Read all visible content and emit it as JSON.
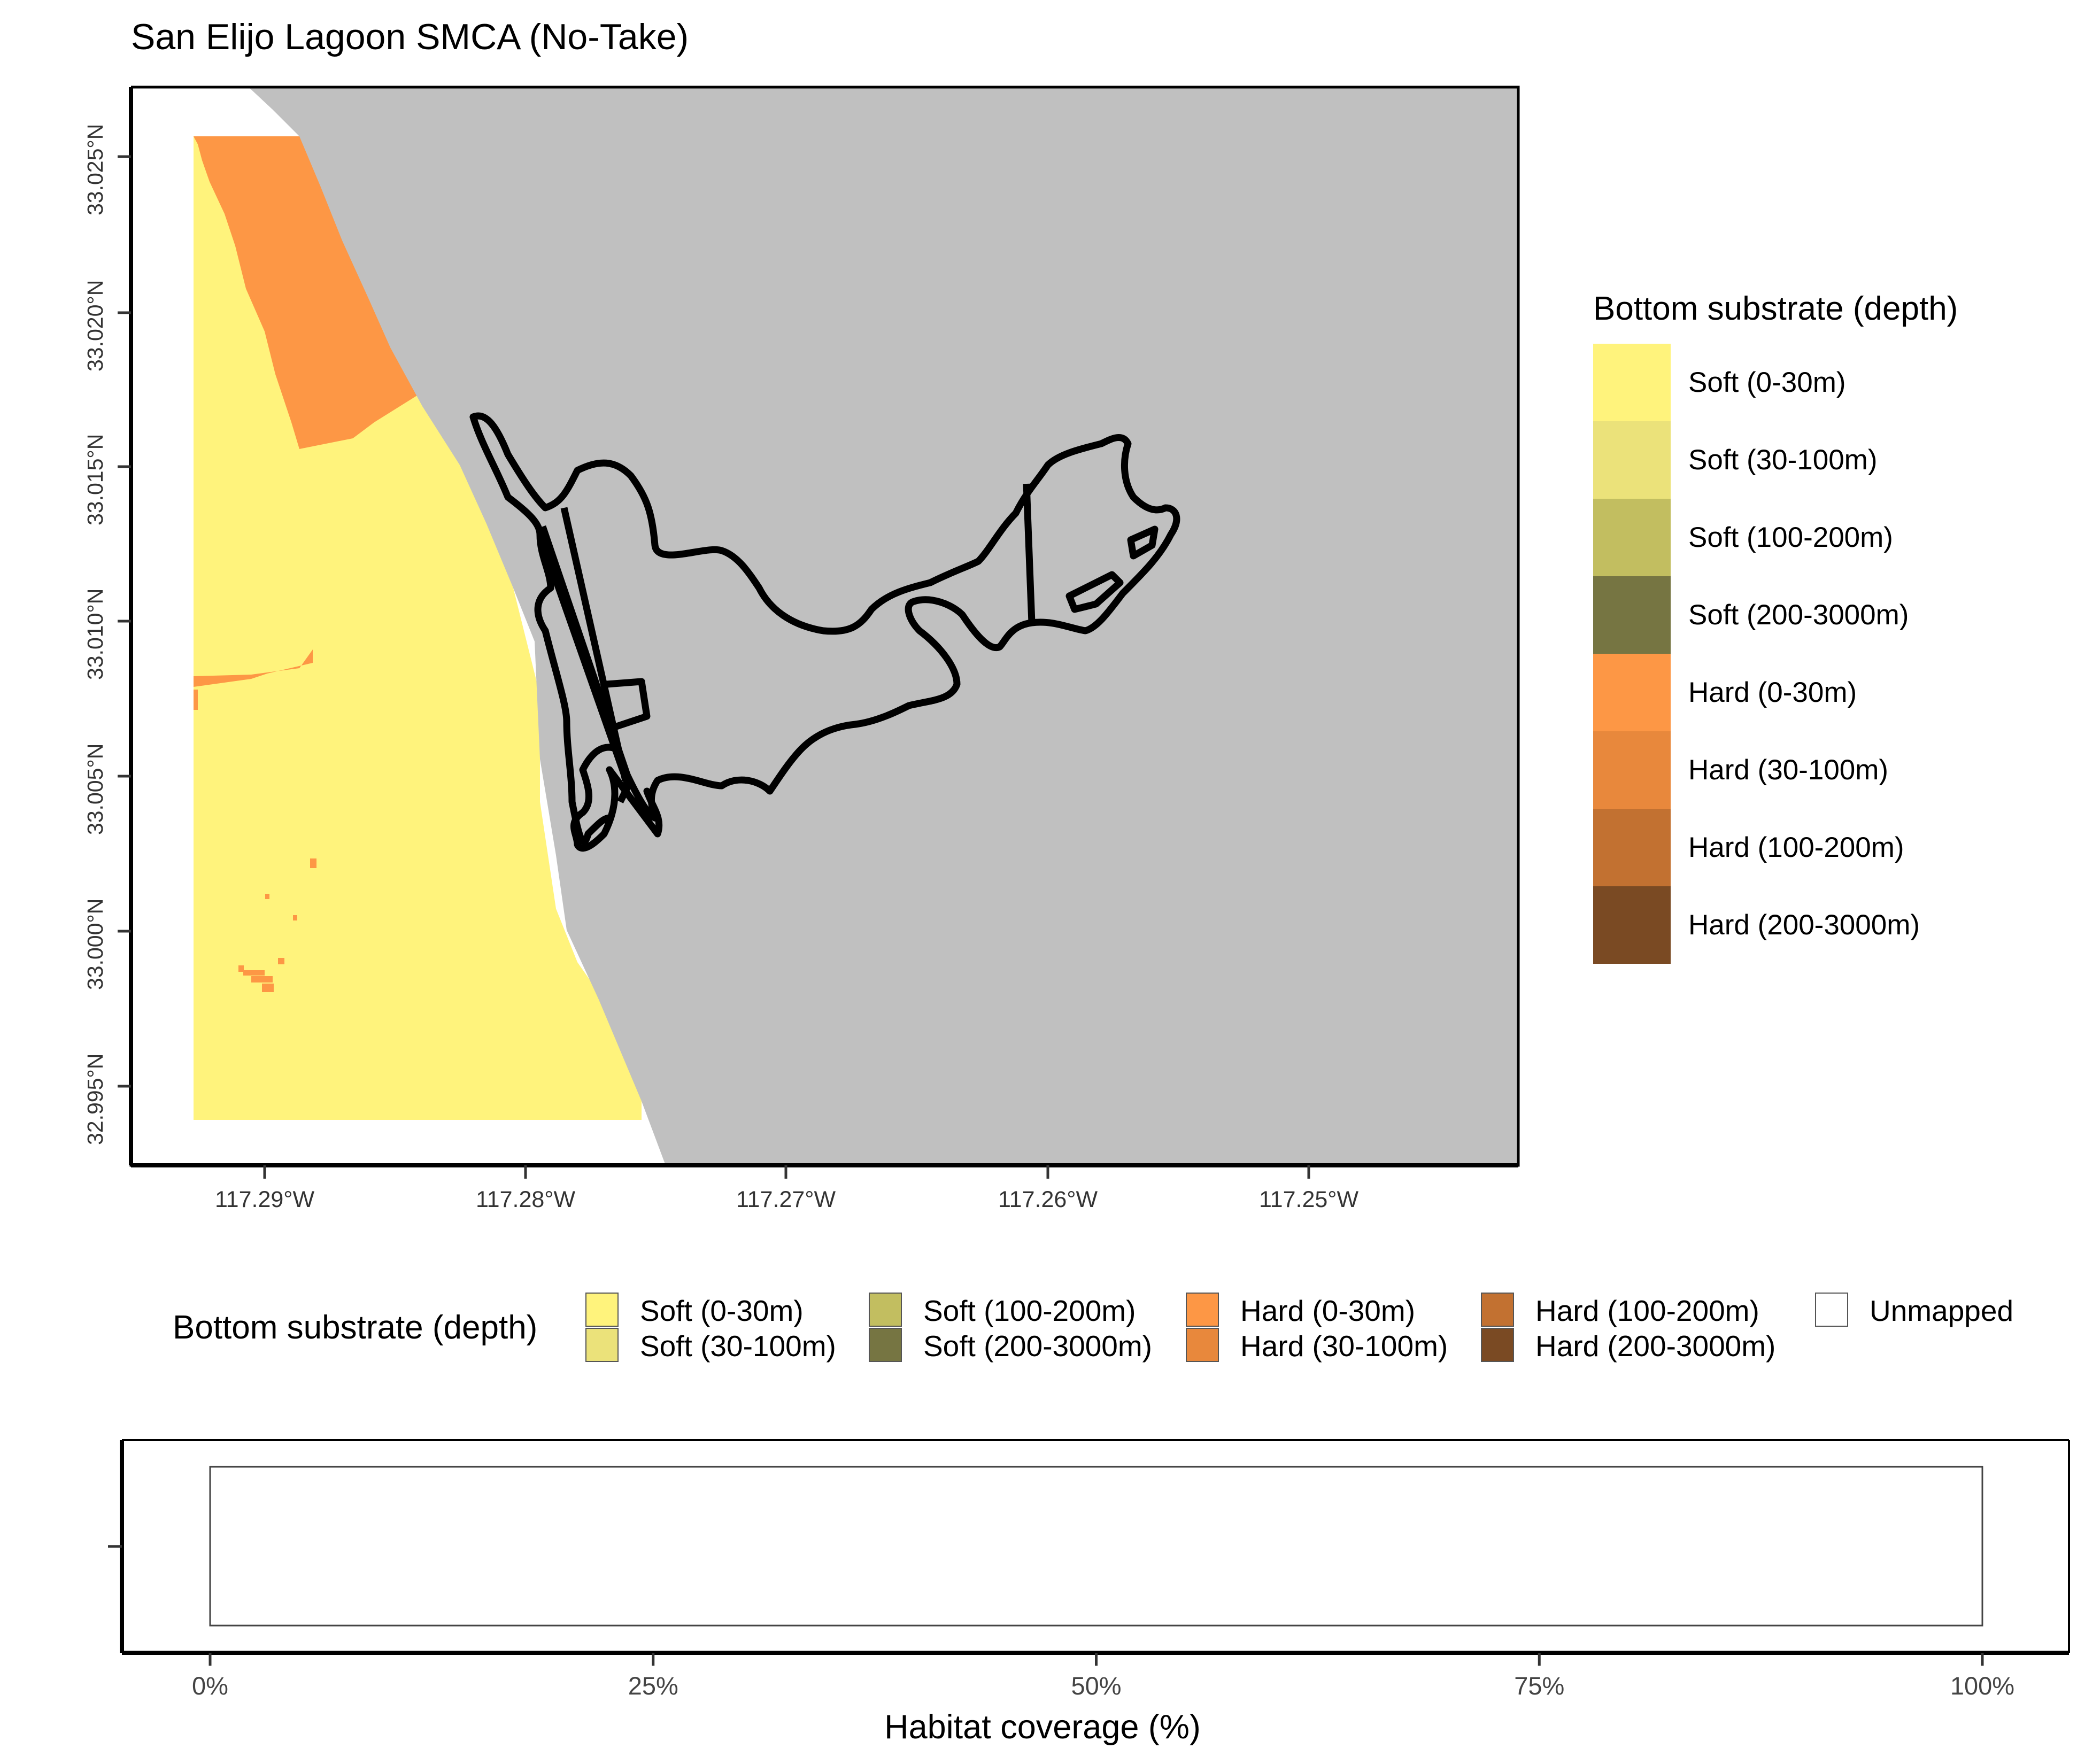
{
  "title": "San Elijo Lagoon SMCA (No-Take)",
  "map": {
    "lat_ticks": [
      "33.025°N",
      "33.020°N",
      "33.015°N",
      "33.010°N",
      "33.005°N",
      "33.000°N",
      "32.995°N"
    ],
    "lon_ticks": [
      "117.29°W",
      "117.28°W",
      "117.27°W",
      "117.26°W",
      "117.25°W"
    ],
    "colors": {
      "land": "#c0c0c0",
      "mpa_outline": "#000000"
    }
  },
  "right_legend": {
    "title": "Bottom substrate (depth)",
    "items": [
      {
        "label": "Soft (0-30m)",
        "color": "#fff37c"
      },
      {
        "label": "Soft (30-100m)",
        "color": "#ebe27a"
      },
      {
        "label": "Soft (100-200m)",
        "color": "#c2be60"
      },
      {
        "label": "Soft (200-3000m)",
        "color": "#767542"
      },
      {
        "label": "Hard (0-30m)",
        "color": "#fd9745"
      },
      {
        "label": "Hard (30-100m)",
        "color": "#e8883c"
      },
      {
        "label": "Hard (100-200m)",
        "color": "#c27131"
      },
      {
        "label": "Hard (200-3000m)",
        "color": "#7a4a23"
      }
    ]
  },
  "bottom_legend": {
    "title": "Bottom substrate (depth)",
    "items": [
      {
        "label": "Soft (0-30m)",
        "color": "#fff37c"
      },
      {
        "label": "Soft (30-100m)",
        "color": "#ebe27a"
      },
      {
        "label": "Soft (100-200m)",
        "color": "#c2be60"
      },
      {
        "label": "Soft (200-3000m)",
        "color": "#767542"
      },
      {
        "label": "Hard (0-30m)",
        "color": "#fd9745"
      },
      {
        "label": "Hard (30-100m)",
        "color": "#e8883c"
      },
      {
        "label": "Hard (100-200m)",
        "color": "#c27131"
      },
      {
        "label": "Hard (200-3000m)",
        "color": "#7a4a23"
      },
      {
        "label": "Unmapped",
        "color": "#ffffff"
      }
    ]
  },
  "chart_data": {
    "type": "bar",
    "orientation": "horizontal",
    "categories": [
      ""
    ],
    "series": [
      {
        "name": "Unmapped",
        "values": [
          100
        ]
      }
    ],
    "xlabel": "Habitat coverage (%)",
    "ylabel": "",
    "xlim": [
      0,
      100
    ],
    "x_ticks": [
      "0%",
      "25%",
      "50%",
      "75%",
      "100%"
    ]
  }
}
